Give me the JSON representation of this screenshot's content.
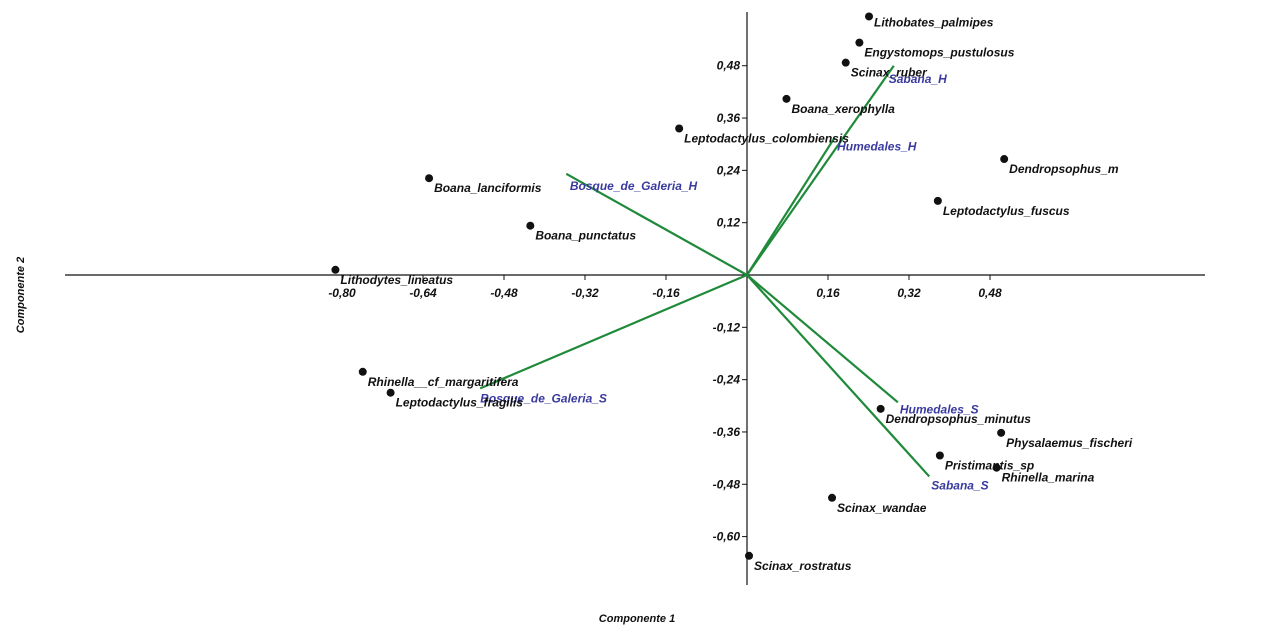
{
  "chart_data": {
    "type": "scatter",
    "xlabel": "Componente 1",
    "ylabel": "Componente 2",
    "xlim": [
      -0.84,
      0.62
    ],
    "ylim": [
      -0.7,
      0.62
    ],
    "x_ticks": [
      {
        "value": -0.8,
        "label": "-0,80"
      },
      {
        "value": -0.64,
        "label": "-0,64"
      },
      {
        "value": -0.48,
        "label": "-0,48"
      },
      {
        "value": -0.32,
        "label": "-0,32"
      },
      {
        "value": -0.16,
        "label": "-0,16"
      },
      {
        "value": 0.16,
        "label": "0,16"
      },
      {
        "value": 0.32,
        "label": "0,32"
      },
      {
        "value": 0.48,
        "label": "0,48"
      }
    ],
    "y_ticks": [
      {
        "value": 0.48,
        "label": "0,48"
      },
      {
        "value": 0.36,
        "label": "0,36"
      },
      {
        "value": 0.24,
        "label": "0,24"
      },
      {
        "value": 0.12,
        "label": "0,12"
      },
      {
        "value": -0.12,
        "label": "-0,12"
      },
      {
        "value": -0.24,
        "label": "-0,24"
      },
      {
        "value": -0.36,
        "label": "-0,36"
      },
      {
        "value": -0.48,
        "label": "-0,48"
      },
      {
        "value": -0.6,
        "label": "-0,60"
      }
    ],
    "points": [
      {
        "label": "Lithobates_palmipes",
        "x": 0.241,
        "y": 0.593,
        "label_pos": "above-right"
      },
      {
        "label": "Engystomops_pustulosus",
        "x": 0.222,
        "y": 0.533,
        "label_pos": "below-right"
      },
      {
        "label": "Scinax_ruber",
        "x": 0.195,
        "y": 0.487,
        "label_pos": "below-right"
      },
      {
        "label": "Boana_xerophylla",
        "x": 0.078,
        "y": 0.404,
        "label_pos": "below-right"
      },
      {
        "label": "Leptodactylus_colombiensis",
        "x": -0.134,
        "y": 0.336,
        "label_pos": "below-right"
      },
      {
        "label": "Dendropsophus_m",
        "x": 0.508,
        "y": 0.266,
        "label_pos": "below-right"
      },
      {
        "label": "Leptodactylus_fuscus",
        "x": 0.377,
        "y": 0.17,
        "label_pos": "below-right"
      },
      {
        "label": "Boana_lanciformis",
        "x": -0.628,
        "y": 0.222,
        "label_pos": "below-right"
      },
      {
        "label": "Boana_punctatus",
        "x": -0.428,
        "y": 0.113,
        "label_pos": "below-right"
      },
      {
        "label": "Lithodytes_lineatus",
        "x": -0.813,
        "y": 0.012,
        "label_pos": "below-right"
      },
      {
        "label": "Rhinella__cf_margaritifera",
        "x": -0.759,
        "y": -0.222,
        "label_pos": "below-right"
      },
      {
        "label": "Leptodactylus_fragilis",
        "x": -0.704,
        "y": -0.27,
        "label_pos": "below-right"
      },
      {
        "label": "Dendropsophus_minutus",
        "x": 0.264,
        "y": -0.307,
        "label_pos": "below-right"
      },
      {
        "label": "Physalaemus_fischeri",
        "x": 0.502,
        "y": -0.362,
        "label_pos": "below-right"
      },
      {
        "label": "Pristimantis_sp",
        "x": 0.381,
        "y": -0.414,
        "label_pos": "below-right"
      },
      {
        "label": "Rhinella_marina",
        "x": 0.493,
        "y": -0.442,
        "label_pos": "below-right"
      },
      {
        "label": "Scinax_wandae",
        "x": 0.168,
        "y": -0.511,
        "label_pos": "below-right"
      },
      {
        "label": "Scinax_rostratus",
        "x": 0.004,
        "y": -0.644,
        "label_pos": "below-right"
      }
    ],
    "vectors": [
      {
        "name": "Sabana_H",
        "x": 0.29,
        "y": 0.48,
        "label_x": 0.28,
        "label_y": 0.44
      },
      {
        "name": "Humedales_H",
        "x": 0.173,
        "y": 0.315,
        "label_x": 0.178,
        "label_y": 0.285
      },
      {
        "name": "Bosque_de_Galeria_H",
        "x": -0.357,
        "y": 0.232,
        "label_x": -0.35,
        "label_y": 0.195
      },
      {
        "name": "Bosque_de_Galeria_S",
        "x": -0.527,
        "y": -0.26,
        "label_x": -0.527,
        "label_y": -0.293
      },
      {
        "name": "Humedales_S",
        "x": 0.298,
        "y": -0.292,
        "label_x": 0.302,
        "label_y": -0.318
      },
      {
        "name": "Sabana_S",
        "x": 0.36,
        "y": -0.462,
        "label_x": 0.364,
        "label_y": -0.492
      }
    ],
    "colors": {
      "point": "#111111",
      "vector": "#1f8a3a",
      "vector_label": "#3a3aa0",
      "axis": "#111111"
    },
    "grid": false,
    "legend": "none"
  }
}
